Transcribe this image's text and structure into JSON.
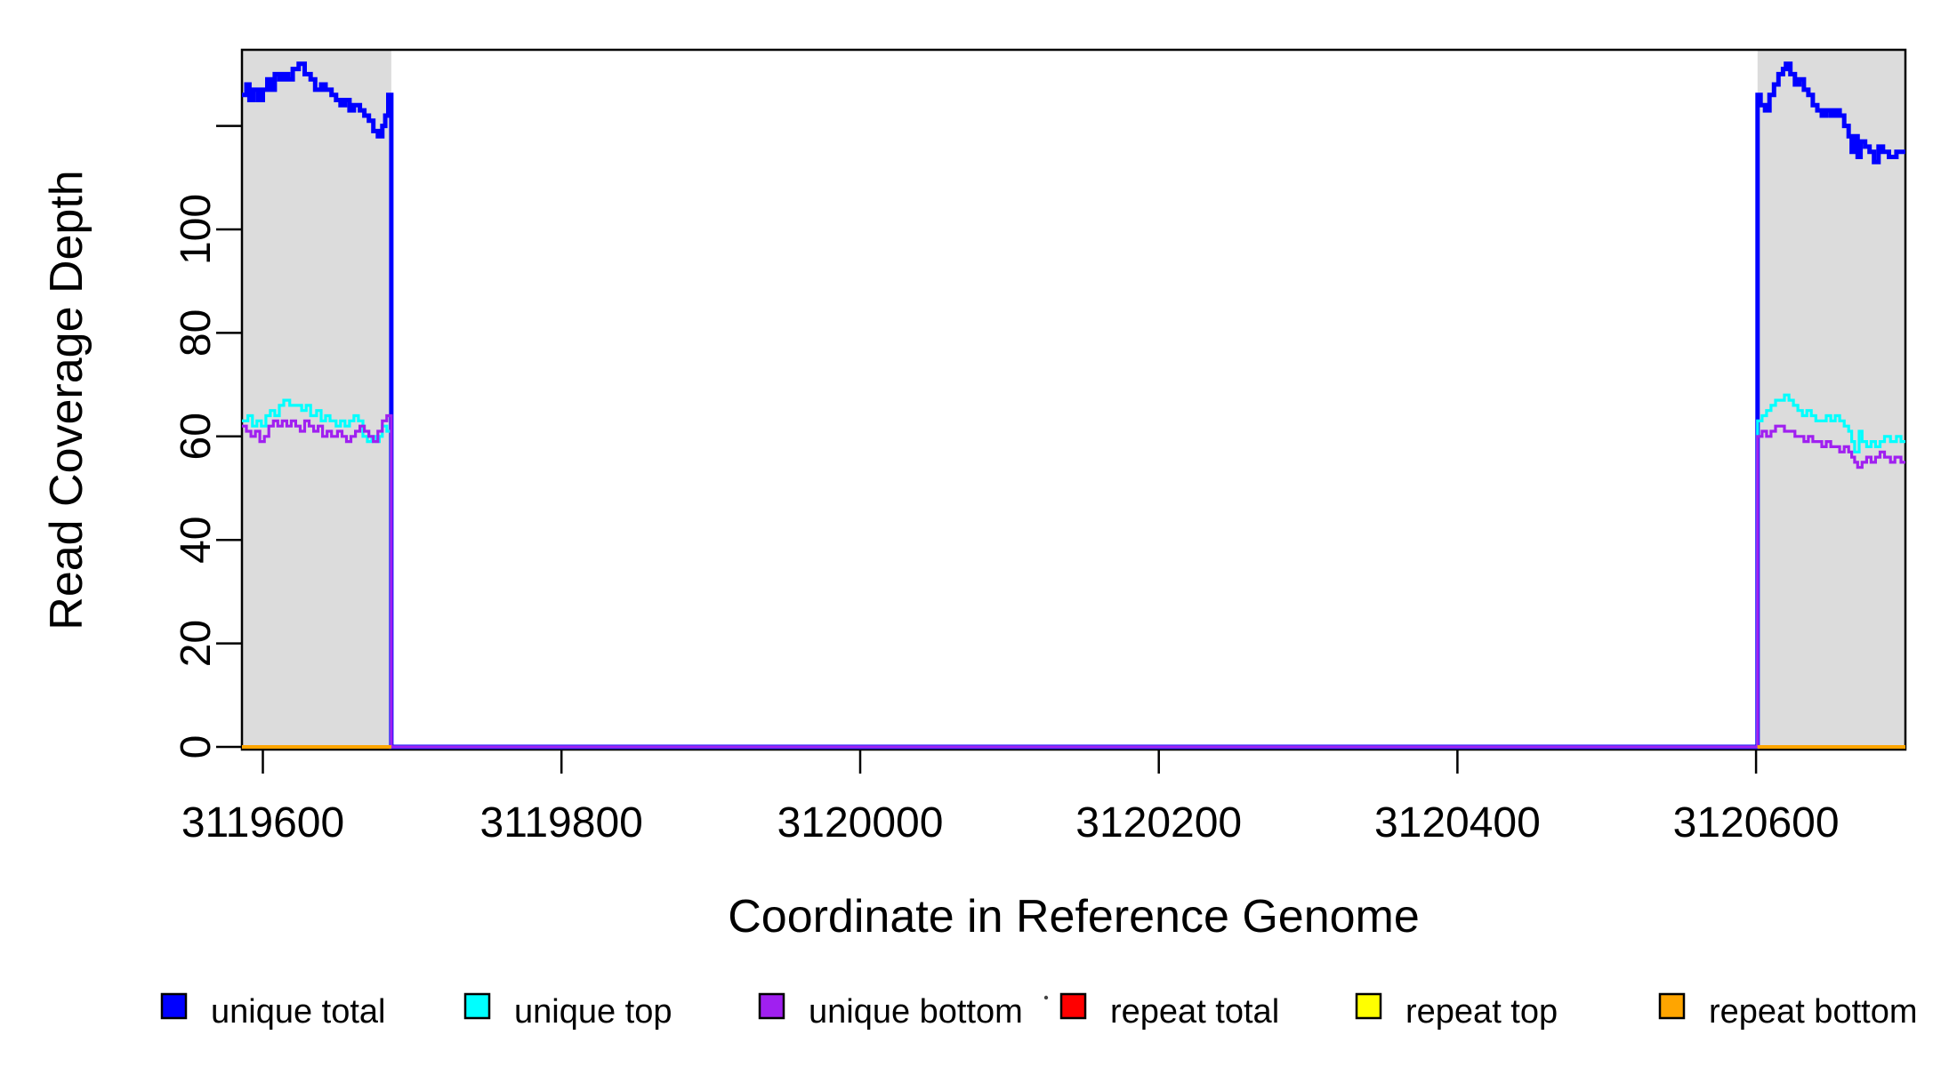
{
  "chart_data": {
    "type": "line",
    "step": true,
    "title": "",
    "xlabel": "Coordinate in Reference Genome",
    "ylabel": "Read Coverage Depth",
    "xlim": [
      3119586,
      3120700
    ],
    "ylim": [
      0,
      135
    ],
    "grid": false,
    "background": "#ffffff",
    "axis_color": "#000000",
    "shade_color": "#dcdcdc",
    "shaded_regions": [
      {
        "x0": 3119586,
        "x1": 3119686
      },
      {
        "x0": 3120601,
        "x1": 3120700
      }
    ],
    "x_ticks": [
      {
        "value": 3119600,
        "label": "3119600"
      },
      {
        "value": 3119800,
        "label": "3119800"
      },
      {
        "value": 3120000,
        "label": "3120000"
      },
      {
        "value": 3120200,
        "label": "3120200"
      },
      {
        "value": 3120400,
        "label": "3120400"
      },
      {
        "value": 3120600,
        "label": "3120600"
      }
    ],
    "y_ticks": [
      {
        "value": 0,
        "label": "0"
      },
      {
        "value": 20,
        "label": "20"
      },
      {
        "value": 40,
        "label": "40"
      },
      {
        "value": 60,
        "label": "60"
      },
      {
        "value": 80,
        "label": "80"
      },
      {
        "value": 100,
        "label": "100"
      },
      {
        "value": 120,
        "label": ""
      }
    ],
    "series": [
      {
        "name": "unique total",
        "color": "#0000ff",
        "width": 5,
        "segments": [
          [
            [
              3119586,
              126
            ],
            [
              3119589,
              128
            ],
            [
              3119591,
              125
            ],
            [
              3119594,
              127
            ],
            [
              3119597,
              125
            ],
            [
              3119600,
              127
            ],
            [
              3119603,
              129
            ],
            [
              3119605,
              127
            ],
            [
              3119608,
              130
            ],
            [
              3119611,
              129
            ],
            [
              3119614,
              130
            ],
            [
              3119617,
              129
            ],
            [
              3119620,
              131
            ],
            [
              3119624,
              132
            ],
            [
              3119628,
              130
            ],
            [
              3119632,
              129
            ],
            [
              3119635,
              127
            ],
            [
              3119639,
              128
            ],
            [
              3119642,
              127
            ],
            [
              3119646,
              126
            ],
            [
              3119649,
              125
            ],
            [
              3119652,
              124
            ],
            [
              3119655,
              125
            ],
            [
              3119658,
              123
            ],
            [
              3119661,
              124
            ],
            [
              3119665,
              123
            ],
            [
              3119668,
              122
            ],
            [
              3119671,
              121
            ],
            [
              3119674,
              119
            ],
            [
              3119677,
              118
            ],
            [
              3119680,
              120
            ],
            [
              3119682,
              122
            ],
            [
              3119684,
              126
            ],
            [
              3119686,
              0
            ],
            [
              3120601,
              126
            ],
            [
              3120603,
              124
            ],
            [
              3120606,
              123
            ],
            [
              3120609,
              126
            ],
            [
              3120612,
              128
            ],
            [
              3120615,
              130
            ],
            [
              3120618,
              131
            ],
            [
              3120620,
              132
            ],
            [
              3120623,
              130
            ],
            [
              3120626,
              128
            ],
            [
              3120629,
              129
            ],
            [
              3120632,
              127
            ],
            [
              3120635,
              126
            ],
            [
              3120638,
              124
            ],
            [
              3120641,
              123
            ],
            [
              3120644,
              122
            ],
            [
              3120647,
              123
            ],
            [
              3120650,
              122
            ],
            [
              3120653,
              123
            ],
            [
              3120656,
              122
            ],
            [
              3120659,
              120
            ],
            [
              3120662,
              118
            ],
            [
              3120664,
              115
            ],
            [
              3120666,
              118
            ],
            [
              3120668,
              114
            ],
            [
              3120670,
              117
            ],
            [
              3120673,
              116
            ],
            [
              3120676,
              115
            ],
            [
              3120679,
              113
            ],
            [
              3120682,
              116
            ],
            [
              3120685,
              115
            ],
            [
              3120689,
              114
            ],
            [
              3120694,
              115
            ],
            [
              3120700,
              115
            ]
          ]
        ]
      },
      {
        "name": "unique top",
        "color": "#00ffff",
        "width": 3.2,
        "segments": [
          [
            [
              3119586,
              63
            ],
            [
              3119590,
              64
            ],
            [
              3119593,
              62
            ],
            [
              3119596,
              63
            ],
            [
              3119599,
              62
            ],
            [
              3119602,
              64
            ],
            [
              3119605,
              65
            ],
            [
              3119608,
              64
            ],
            [
              3119611,
              66
            ],
            [
              3119614,
              67
            ],
            [
              3119618,
              66
            ],
            [
              3119622,
              66
            ],
            [
              3119626,
              65
            ],
            [
              3119629,
              66
            ],
            [
              3119632,
              64
            ],
            [
              3119636,
              65
            ],
            [
              3119639,
              63
            ],
            [
              3119642,
              64
            ],
            [
              3119645,
              63
            ],
            [
              3119649,
              62
            ],
            [
              3119652,
              63
            ],
            [
              3119655,
              62
            ],
            [
              3119658,
              63
            ],
            [
              3119661,
              64
            ],
            [
              3119664,
              63
            ],
            [
              3119667,
              60
            ],
            [
              3119670,
              59
            ],
            [
              3119673,
              60
            ],
            [
              3119676,
              59
            ],
            [
              3119678,
              60
            ],
            [
              3119680,
              62
            ],
            [
              3119683,
              61
            ],
            [
              3119686,
              0
            ],
            [
              3120601,
              63
            ],
            [
              3120604,
              64
            ],
            [
              3120607,
              65
            ],
            [
              3120610,
              66
            ],
            [
              3120613,
              67
            ],
            [
              3120617,
              67
            ],
            [
              3120619,
              68
            ],
            [
              3120622,
              67
            ],
            [
              3120625,
              66
            ],
            [
              3120628,
              65
            ],
            [
              3120631,
              64
            ],
            [
              3120634,
              65
            ],
            [
              3120637,
              64
            ],
            [
              3120640,
              63
            ],
            [
              3120644,
              63
            ],
            [
              3120647,
              64
            ],
            [
              3120650,
              63
            ],
            [
              3120653,
              64
            ],
            [
              3120656,
              63
            ],
            [
              3120659,
              62
            ],
            [
              3120662,
              61
            ],
            [
              3120664,
              59
            ],
            [
              3120666,
              57
            ],
            [
              3120669,
              61
            ],
            [
              3120671,
              59
            ],
            [
              3120674,
              58
            ],
            [
              3120677,
              59
            ],
            [
              3120680,
              58
            ],
            [
              3120683,
              59
            ],
            [
              3120686,
              60
            ],
            [
              3120690,
              59
            ],
            [
              3120694,
              60
            ],
            [
              3120697,
              59
            ],
            [
              3120700,
              59
            ]
          ]
        ]
      },
      {
        "name": "unique bottom",
        "color": "#a020f0",
        "width": 3.2,
        "segments": [
          [
            [
              3119586,
              62
            ],
            [
              3119589,
              61
            ],
            [
              3119592,
              60
            ],
            [
              3119595,
              61
            ],
            [
              3119598,
              59
            ],
            [
              3119601,
              60
            ],
            [
              3119604,
              62
            ],
            [
              3119607,
              63
            ],
            [
              3119610,
              62
            ],
            [
              3119613,
              63
            ],
            [
              3119616,
              62
            ],
            [
              3119619,
              63
            ],
            [
              3119622,
              62
            ],
            [
              3119625,
              61
            ],
            [
              3119628,
              63
            ],
            [
              3119631,
              62
            ],
            [
              3119634,
              61
            ],
            [
              3119637,
              62
            ],
            [
              3119640,
              60
            ],
            [
              3119643,
              61
            ],
            [
              3119646,
              60
            ],
            [
              3119650,
              61
            ],
            [
              3119653,
              60
            ],
            [
              3119656,
              59
            ],
            [
              3119659,
              60
            ],
            [
              3119662,
              61
            ],
            [
              3119665,
              62
            ],
            [
              3119668,
              61
            ],
            [
              3119671,
              60
            ],
            [
              3119674,
              59
            ],
            [
              3119677,
              61
            ],
            [
              3119680,
              63
            ],
            [
              3119683,
              64
            ],
            [
              3119686,
              0
            ],
            [
              3120601,
              60
            ],
            [
              3120604,
              61
            ],
            [
              3120607,
              60
            ],
            [
              3120610,
              61
            ],
            [
              3120613,
              62
            ],
            [
              3120616,
              62
            ],
            [
              3120619,
              61
            ],
            [
              3120623,
              61
            ],
            [
              3120626,
              60
            ],
            [
              3120629,
              60
            ],
            [
              3120632,
              59
            ],
            [
              3120635,
              60
            ],
            [
              3120638,
              59
            ],
            [
              3120641,
              59
            ],
            [
              3120644,
              58
            ],
            [
              3120647,
              59
            ],
            [
              3120650,
              58
            ],
            [
              3120653,
              58
            ],
            [
              3120656,
              57
            ],
            [
              3120659,
              58
            ],
            [
              3120662,
              57
            ],
            [
              3120664,
              56
            ],
            [
              3120666,
              55
            ],
            [
              3120668,
              54
            ],
            [
              3120671,
              55
            ],
            [
              3120674,
              56
            ],
            [
              3120677,
              55
            ],
            [
              3120680,
              56
            ],
            [
              3120683,
              57
            ],
            [
              3120686,
              56
            ],
            [
              3120690,
              55
            ],
            [
              3120693,
              56
            ],
            [
              3120697,
              55
            ],
            [
              3120700,
              55
            ]
          ]
        ]
      },
      {
        "name": "repeat total",
        "color": "#ff0000",
        "width": 3.2,
        "segments": [
          [
            [
              3119586,
              0
            ],
            [
              3119686,
              0
            ]
          ],
          [
            [
              3120601,
              0
            ],
            [
              3120700,
              0
            ]
          ]
        ]
      },
      {
        "name": "repeat top",
        "color": "#ffff00",
        "width": 3.2,
        "segments": [
          [
            [
              3119586,
              0
            ],
            [
              3119686,
              0
            ]
          ],
          [
            [
              3120601,
              0
            ],
            [
              3120700,
              0
            ]
          ]
        ]
      },
      {
        "name": "repeat bottom",
        "color": "#ffa500",
        "width": 4,
        "segments": [
          [
            [
              3119586,
              0
            ],
            [
              3119686,
              0
            ]
          ],
          [
            [
              3120601,
              0
            ],
            [
              3120700,
              0
            ]
          ]
        ]
      }
    ],
    "legend": {
      "position": "bottom",
      "items": [
        {
          "label": "unique total",
          "color": "#0000ff"
        },
        {
          "label": "unique top",
          "color": "#00ffff"
        },
        {
          "label": "unique bottom",
          "color": "#a020f0"
        },
        {
          "label": "repeat total",
          "color": "#ff0000"
        },
        {
          "label": "repeat top",
          "color": "#ffff00"
        },
        {
          "label": "repeat bottom",
          "color": "#ffa500"
        }
      ]
    }
  }
}
